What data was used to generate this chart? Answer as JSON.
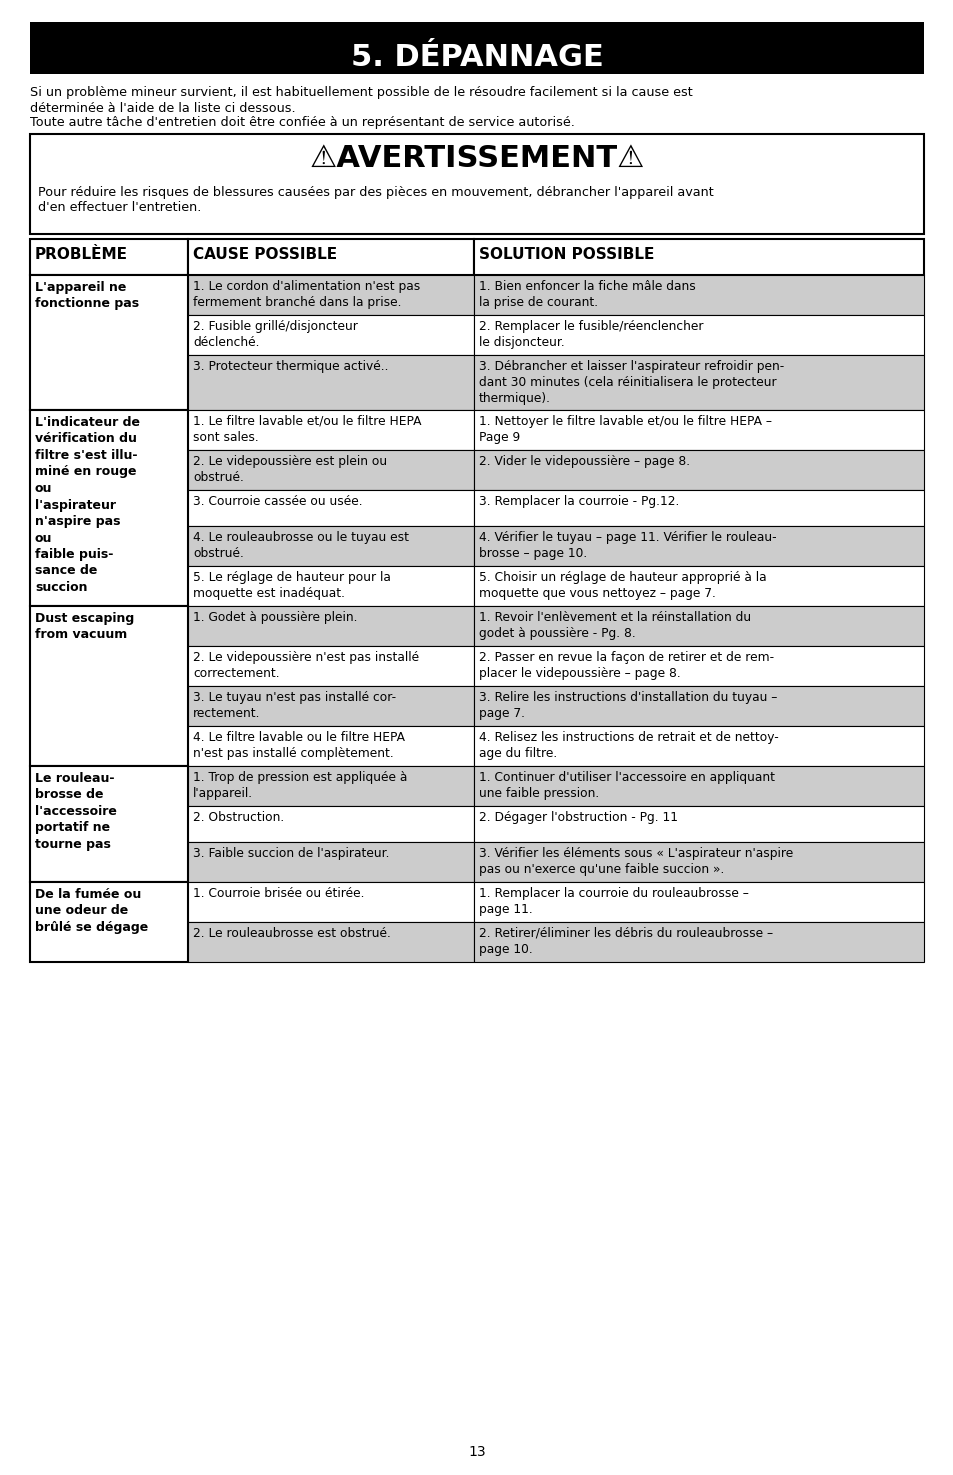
{
  "title": "5. DÉPANNAGE",
  "title_bg": "#000000",
  "title_color": "#ffffff",
  "intro_line1": "Si un problème mineur survient, il est habituellement possible de le résoudre facilement si la cause est",
  "intro_line2": "déterminée à l'aide de la liste ci dessous.",
  "intro_line3": "Toute autre tâche d'entretien doit être confiée à un représentant de service autorisé.",
  "warning_title": "⚠AVERTISSEMENT⚠",
  "warning_line1": "Pour réduire les risques de blessures causées par des pièces en mouvement, débrancher l'appareil avant",
  "warning_line2": "d'en effectuer l'entretien.",
  "col_headers": [
    "PROBLÈME",
    "CAUSE POSSIBLE",
    "SOLUTION POSSIBLE"
  ],
  "rows": [
    {
      "problem": "L'appareil ne\nfonctionne pas",
      "causes_solutions": [
        {
          "cause": "1. Le cordon d'alimentation n'est pas\nfermement branché dans la prise.",
          "solution": "1. Bien enfoncer la fiche mâle dans\nla prise de courant.",
          "shaded": true
        },
        {
          "cause": "2. Fusible grillé/disjoncteur\ndéclenché.",
          "solution": "2. Remplacer le fusible/réenclencher\nle disjoncteur.",
          "shaded": false
        },
        {
          "cause": "3. Protecteur thermique activé..",
          "solution": "3. Débrancher et laisser l'aspirateur refroidir pen-\ndant 30 minutes (cela réinitialisera le protecteur\nthermique).",
          "shaded": true
        }
      ]
    },
    {
      "problem": "L'indicateur de\nvérification du\nfiltre s'est illu-\nminé en rouge\nou\nl'aspirateur\nn'aspire pas\nou\nfaible puis-\nsance de\nsuccion",
      "causes_solutions": [
        {
          "cause": "1. Le filtre lavable et/ou le filtre HEPA\nsont sales.",
          "solution": "1. Nettoyer le filtre lavable et/ou le filtre HEPA –\nPage 9",
          "shaded": false
        },
        {
          "cause": "2. Le videpoussière est plein ou\nobstrué.",
          "solution": "2. Vider le videpoussière – page 8.",
          "shaded": true
        },
        {
          "cause": "3. Courroie cassée ou usée.",
          "solution": "3. Remplacer la courroie - Pg.12.",
          "shaded": false
        },
        {
          "cause": "4. Le rouleaubrosse ou le tuyau est\nobstrué.",
          "solution": "4. Vérifier le tuyau – page 11. Vérifier le rouleau-\nbrosse – page 10.",
          "shaded": true
        },
        {
          "cause": "5. Le réglage de hauteur pour la\nmoquette est inadéquat.",
          "solution": "5. Choisir un réglage de hauteur approprié à la\nmoquette que vous nettoyez – page 7.",
          "shaded": false
        }
      ]
    },
    {
      "problem": "Dust escaping\nfrom vacuum",
      "causes_solutions": [
        {
          "cause": "1. Godet à poussière plein.",
          "solution": "1. Revoir l'enlèvement et la réinstallation du\ngodet à poussière - Pg. 8.",
          "shaded": true
        },
        {
          "cause": "2. Le videpoussière n'est pas installé\ncorrectement.",
          "solution": "2. Passer en revue la façon de retirer et de rem-\nplacer le videpoussière – page 8.",
          "shaded": false
        },
        {
          "cause": "3. Le tuyau n'est pas installé cor-\nrectement.",
          "solution": "3. Relire les instructions d'installation du tuyau –\npage 7.",
          "shaded": true
        },
        {
          "cause": "4. Le filtre lavable ou le filtre HEPA\nn'est pas installé complètement.",
          "solution": "4. Relisez les instructions de retrait et de nettoy-\nage du filtre.",
          "shaded": false
        }
      ]
    },
    {
      "problem": "Le rouleau-\nbrosse de\nl'accessoire\nportatif ne\ntourne pas",
      "causes_solutions": [
        {
          "cause": "1. Trop de pression est appliquée à\nl'appareil.",
          "solution": "1. Continuer d'utiliser l'accessoire en appliquant\nune faible pression.",
          "shaded": true
        },
        {
          "cause": "2. Obstruction.",
          "solution": "2. Dégager l'obstruction - Pg. 11",
          "shaded": false
        },
        {
          "cause": "3. Faible succion de l'aspirateur.",
          "solution": "3. Vérifier les éléments sous « L'aspirateur n'aspire\npas ou n'exerce qu'une faible succion ».",
          "shaded": true
        }
      ]
    },
    {
      "problem": "De la fumée ou\nune odeur de\nbrûlé se dégage",
      "causes_solutions": [
        {
          "cause": "1. Courroie brisée ou étirée.",
          "solution": "1. Remplacer la courroie du rouleaubrosse –\npage 11.",
          "shaded": false
        },
        {
          "cause": "2. Le rouleaubrosse est obstrué.",
          "solution": "2. Retirer/éliminer les débris du rouleaubrosse –\npage 10.",
          "shaded": true
        }
      ]
    }
  ],
  "page_number": "13",
  "shaded_color": "#cccccc",
  "white_color": "#ffffff"
}
